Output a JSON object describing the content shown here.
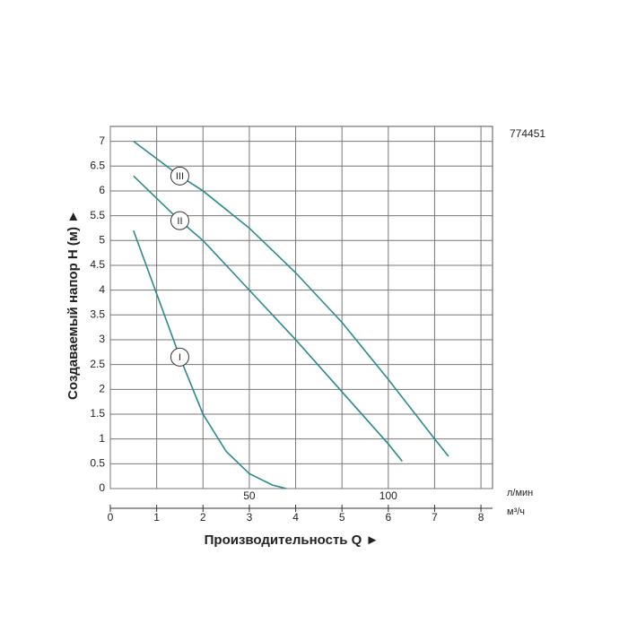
{
  "chart_data": {
    "type": "line",
    "code": "774451",
    "ylabel": "Создаваемый напор H (м) ►",
    "xlabel": "Производительность Q ►",
    "x_unit": "м³/ч",
    "x2_unit": "л/мин",
    "xlim": [
      0,
      8.25
    ],
    "xticks": [
      0,
      1,
      2,
      3,
      4,
      5,
      6,
      7,
      8
    ],
    "x2lim": [
      0,
      137.5
    ],
    "x2ticks": [
      50,
      100
    ],
    "ylim": [
      0,
      7.3
    ],
    "yticks": [
      0,
      0.5,
      1,
      1.5,
      2,
      2.5,
      3,
      3.5,
      4,
      4.5,
      5,
      5.5,
      6,
      6.5,
      7
    ],
    "grid": true,
    "series": [
      {
        "name": "I",
        "color": "#2b8a8c",
        "x": [
          0.5,
          1.5,
          2,
          2.5,
          3,
          3.5,
          3.8
        ],
        "values": [
          5.2,
          2.65,
          1.5,
          0.75,
          0.3,
          0.07,
          0
        ]
      },
      {
        "name": "II",
        "color": "#2b8a8c",
        "x": [
          0.5,
          1.5,
          2,
          3,
          4,
          5,
          6,
          6.3
        ],
        "values": [
          6.3,
          5.4,
          5.0,
          4.0,
          3.0,
          1.95,
          0.9,
          0.55
        ]
      },
      {
        "name": "III",
        "color": "#2b8a8c",
        "x": [
          0.5,
          1.5,
          2,
          3,
          4,
          5,
          6,
          7,
          7.3
        ],
        "values": [
          7.0,
          6.3,
          6.0,
          5.25,
          4.35,
          3.35,
          2.2,
          1.0,
          0.65
        ]
      }
    ]
  }
}
